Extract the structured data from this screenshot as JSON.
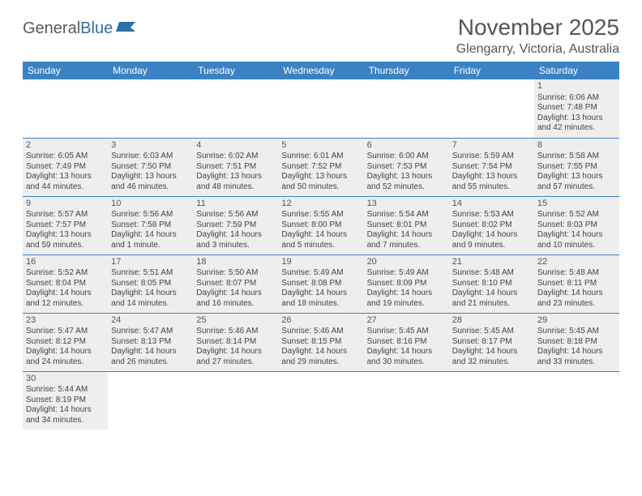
{
  "brand": {
    "word1": "General",
    "word2": "Blue"
  },
  "title": "November 2025",
  "location": "Glengarry, Victoria, Australia",
  "colors": {
    "header_bg": "#3b82c4",
    "header_text": "#ffffff",
    "cell_border": "#3b82c4",
    "shaded_bg": "#eeeeee",
    "text": "#444444",
    "title_text": "#555555"
  },
  "dow": [
    "Sunday",
    "Monday",
    "Tuesday",
    "Wednesday",
    "Thursday",
    "Friday",
    "Saturday"
  ],
  "weeks": [
    [
      null,
      null,
      null,
      null,
      null,
      null,
      {
        "n": "1",
        "sr": "Sunrise: 6:06 AM",
        "ss": "Sunset: 7:48 PM",
        "d1": "Daylight: 13 hours",
        "d2": "and 42 minutes."
      }
    ],
    [
      {
        "n": "2",
        "sr": "Sunrise: 6:05 AM",
        "ss": "Sunset: 7:49 PM",
        "d1": "Daylight: 13 hours",
        "d2": "and 44 minutes."
      },
      {
        "n": "3",
        "sr": "Sunrise: 6:03 AM",
        "ss": "Sunset: 7:50 PM",
        "d1": "Daylight: 13 hours",
        "d2": "and 46 minutes."
      },
      {
        "n": "4",
        "sr": "Sunrise: 6:02 AM",
        "ss": "Sunset: 7:51 PM",
        "d1": "Daylight: 13 hours",
        "d2": "and 48 minutes."
      },
      {
        "n": "5",
        "sr": "Sunrise: 6:01 AM",
        "ss": "Sunset: 7:52 PM",
        "d1": "Daylight: 13 hours",
        "d2": "and 50 minutes."
      },
      {
        "n": "6",
        "sr": "Sunrise: 6:00 AM",
        "ss": "Sunset: 7:53 PM",
        "d1": "Daylight: 13 hours",
        "d2": "and 52 minutes."
      },
      {
        "n": "7",
        "sr": "Sunrise: 5:59 AM",
        "ss": "Sunset: 7:54 PM",
        "d1": "Daylight: 13 hours",
        "d2": "and 55 minutes."
      },
      {
        "n": "8",
        "sr": "Sunrise: 5:58 AM",
        "ss": "Sunset: 7:55 PM",
        "d1": "Daylight: 13 hours",
        "d2": "and 57 minutes."
      }
    ],
    [
      {
        "n": "9",
        "sr": "Sunrise: 5:57 AM",
        "ss": "Sunset: 7:57 PM",
        "d1": "Daylight: 13 hours",
        "d2": "and 59 minutes."
      },
      {
        "n": "10",
        "sr": "Sunrise: 5:56 AM",
        "ss": "Sunset: 7:58 PM",
        "d1": "Daylight: 14 hours",
        "d2": "and 1 minute."
      },
      {
        "n": "11",
        "sr": "Sunrise: 5:56 AM",
        "ss": "Sunset: 7:59 PM",
        "d1": "Daylight: 14 hours",
        "d2": "and 3 minutes."
      },
      {
        "n": "12",
        "sr": "Sunrise: 5:55 AM",
        "ss": "Sunset: 8:00 PM",
        "d1": "Daylight: 14 hours",
        "d2": "and 5 minutes."
      },
      {
        "n": "13",
        "sr": "Sunrise: 5:54 AM",
        "ss": "Sunset: 8:01 PM",
        "d1": "Daylight: 14 hours",
        "d2": "and 7 minutes."
      },
      {
        "n": "14",
        "sr": "Sunrise: 5:53 AM",
        "ss": "Sunset: 8:02 PM",
        "d1": "Daylight: 14 hours",
        "d2": "and 9 minutes."
      },
      {
        "n": "15",
        "sr": "Sunrise: 5:52 AM",
        "ss": "Sunset: 8:03 PM",
        "d1": "Daylight: 14 hours",
        "d2": "and 10 minutes."
      }
    ],
    [
      {
        "n": "16",
        "sr": "Sunrise: 5:52 AM",
        "ss": "Sunset: 8:04 PM",
        "d1": "Daylight: 14 hours",
        "d2": "and 12 minutes."
      },
      {
        "n": "17",
        "sr": "Sunrise: 5:51 AM",
        "ss": "Sunset: 8:05 PM",
        "d1": "Daylight: 14 hours",
        "d2": "and 14 minutes."
      },
      {
        "n": "18",
        "sr": "Sunrise: 5:50 AM",
        "ss": "Sunset: 8:07 PM",
        "d1": "Daylight: 14 hours",
        "d2": "and 16 minutes."
      },
      {
        "n": "19",
        "sr": "Sunrise: 5:49 AM",
        "ss": "Sunset: 8:08 PM",
        "d1": "Daylight: 14 hours",
        "d2": "and 18 minutes."
      },
      {
        "n": "20",
        "sr": "Sunrise: 5:49 AM",
        "ss": "Sunset: 8:09 PM",
        "d1": "Daylight: 14 hours",
        "d2": "and 19 minutes."
      },
      {
        "n": "21",
        "sr": "Sunrise: 5:48 AM",
        "ss": "Sunset: 8:10 PM",
        "d1": "Daylight: 14 hours",
        "d2": "and 21 minutes."
      },
      {
        "n": "22",
        "sr": "Sunrise: 5:48 AM",
        "ss": "Sunset: 8:11 PM",
        "d1": "Daylight: 14 hours",
        "d2": "and 23 minutes."
      }
    ],
    [
      {
        "n": "23",
        "sr": "Sunrise: 5:47 AM",
        "ss": "Sunset: 8:12 PM",
        "d1": "Daylight: 14 hours",
        "d2": "and 24 minutes."
      },
      {
        "n": "24",
        "sr": "Sunrise: 5:47 AM",
        "ss": "Sunset: 8:13 PM",
        "d1": "Daylight: 14 hours",
        "d2": "and 26 minutes."
      },
      {
        "n": "25",
        "sr": "Sunrise: 5:46 AM",
        "ss": "Sunset: 8:14 PM",
        "d1": "Daylight: 14 hours",
        "d2": "and 27 minutes."
      },
      {
        "n": "26",
        "sr": "Sunrise: 5:46 AM",
        "ss": "Sunset: 8:15 PM",
        "d1": "Daylight: 14 hours",
        "d2": "and 29 minutes."
      },
      {
        "n": "27",
        "sr": "Sunrise: 5:45 AM",
        "ss": "Sunset: 8:16 PM",
        "d1": "Daylight: 14 hours",
        "d2": "and 30 minutes."
      },
      {
        "n": "28",
        "sr": "Sunrise: 5:45 AM",
        "ss": "Sunset: 8:17 PM",
        "d1": "Daylight: 14 hours",
        "d2": "and 32 minutes."
      },
      {
        "n": "29",
        "sr": "Sunrise: 5:45 AM",
        "ss": "Sunset: 8:18 PM",
        "d1": "Daylight: 14 hours",
        "d2": "and 33 minutes."
      }
    ],
    [
      {
        "n": "30",
        "sr": "Sunrise: 5:44 AM",
        "ss": "Sunset: 8:19 PM",
        "d1": "Daylight: 14 hours",
        "d2": "and 34 minutes."
      },
      null,
      null,
      null,
      null,
      null,
      null
    ]
  ]
}
